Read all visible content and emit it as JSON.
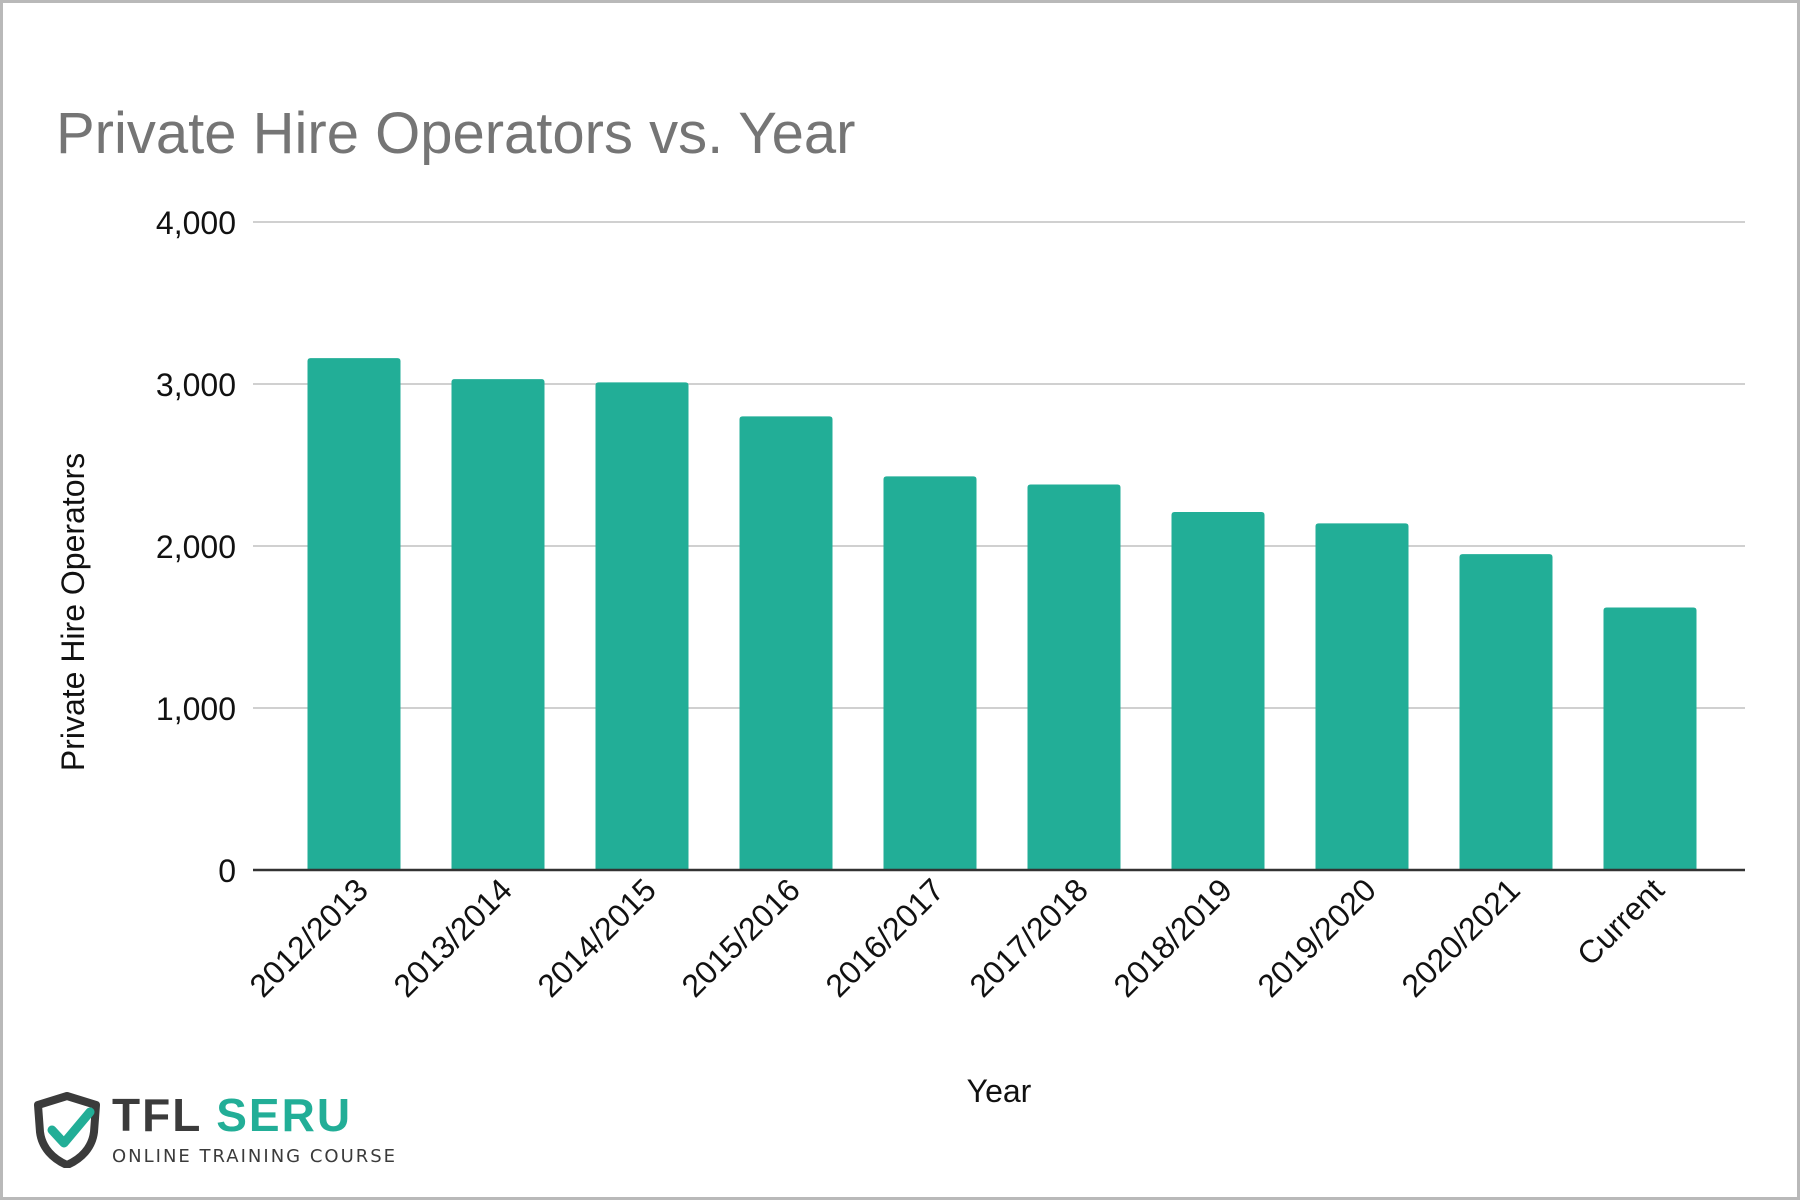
{
  "chart_data": {
    "type": "bar",
    "title": "Private Hire Operators vs. Year",
    "xlabel": "Year",
    "ylabel": "Private Hire Operators",
    "categories": [
      "2012/2013",
      "2013/2014",
      "2014/2015",
      "2015/2016",
      "2016/2017",
      "2017/2018",
      "2018/2019",
      "2019/2020",
      "2020/2021",
      "Current"
    ],
    "values": [
      3160,
      3030,
      3010,
      2800,
      2430,
      2380,
      2210,
      2140,
      1950,
      1620
    ],
    "ylim": [
      0,
      4000
    ],
    "yticks": [
      0,
      1000,
      2000,
      3000,
      4000
    ],
    "ytick_labels": [
      "0",
      "1,000",
      "2,000",
      "3,000",
      "4,000"
    ],
    "grid": true,
    "bar_color": "#22ae97"
  },
  "logo": {
    "brand_left": "TFL",
    "brand_right": "SERU",
    "tagline": "ONLINE TRAINING COURSE"
  }
}
